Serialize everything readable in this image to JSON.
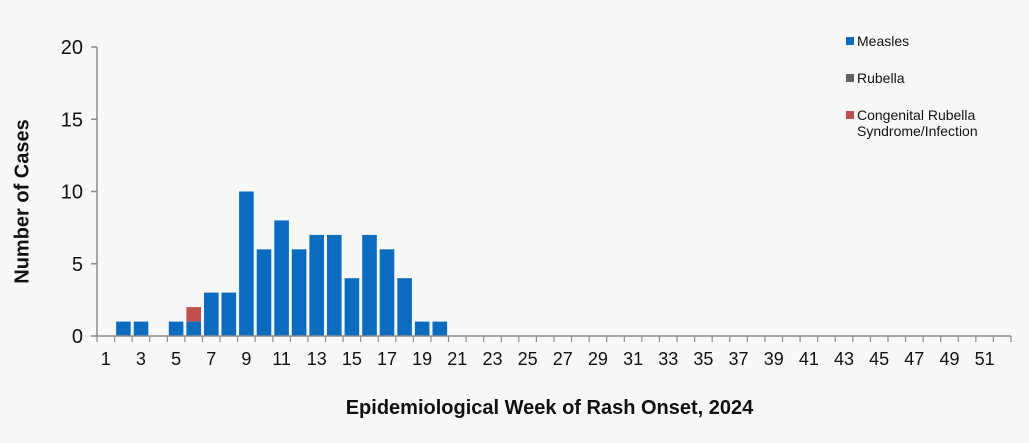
{
  "chart_data": {
    "type": "bar",
    "stacked": true,
    "title": "",
    "xlabel": "Epidemiological Week of Rash Onset, 2024",
    "ylabel": "Number of Cases",
    "ylim": [
      0,
      20
    ],
    "yticks": [
      0,
      5,
      10,
      15,
      20
    ],
    "xtick_labels": [
      1,
      3,
      5,
      7,
      9,
      11,
      13,
      15,
      17,
      19,
      21,
      23,
      25,
      27,
      29,
      31,
      33,
      35,
      37,
      39,
      41,
      43,
      45,
      47,
      49,
      51
    ],
    "grid": false,
    "legend_position": "top-right",
    "categories": [
      1,
      2,
      3,
      4,
      5,
      6,
      7,
      8,
      9,
      10,
      11,
      12,
      13,
      14,
      15,
      16,
      17,
      18,
      19,
      20,
      21,
      22,
      23,
      24,
      25,
      26,
      27,
      28,
      29,
      30,
      31,
      32,
      33,
      34,
      35,
      36,
      37,
      38,
      39,
      40,
      41,
      42,
      43,
      44,
      45,
      46,
      47,
      48,
      49,
      50,
      51,
      52
    ],
    "series": [
      {
        "name": "Measles",
        "color": "#0a6bbf",
        "values": [
          0,
          1,
          1,
          0,
          1,
          1,
          3,
          3,
          10,
          6,
          8,
          6,
          7,
          7,
          4,
          7,
          6,
          4,
          1,
          1,
          0,
          0,
          0,
          0,
          0,
          0,
          0,
          0,
          0,
          0,
          0,
          0,
          0,
          0,
          0,
          0,
          0,
          0,
          0,
          0,
          0,
          0,
          0,
          0,
          0,
          0,
          0,
          0,
          0,
          0,
          0,
          0
        ]
      },
      {
        "name": "Rubella",
        "color": "#636363",
        "values": [
          0,
          0,
          0,
          0,
          0,
          0,
          0,
          0,
          0,
          0,
          0,
          0,
          0,
          0,
          0,
          0,
          0,
          0,
          0,
          0,
          0,
          0,
          0,
          0,
          0,
          0,
          0,
          0,
          0,
          0,
          0,
          0,
          0,
          0,
          0,
          0,
          0,
          0,
          0,
          0,
          0,
          0,
          0,
          0,
          0,
          0,
          0,
          0,
          0,
          0,
          0,
          0
        ]
      },
      {
        "name": "Congenital Rubella Syndrome/Infection",
        "color": "#c0504d",
        "values": [
          0,
          0,
          0,
          0,
          0,
          1,
          0,
          0,
          0,
          0,
          0,
          0,
          0,
          0,
          0,
          0,
          0,
          0,
          0,
          0,
          0,
          0,
          0,
          0,
          0,
          0,
          0,
          0,
          0,
          0,
          0,
          0,
          0,
          0,
          0,
          0,
          0,
          0,
          0,
          0,
          0,
          0,
          0,
          0,
          0,
          0,
          0,
          0,
          0,
          0,
          0,
          0
        ]
      }
    ]
  },
  "legend": {
    "items": [
      {
        "label": "Measles",
        "color": "#0a6bbf"
      },
      {
        "label": "Rubella",
        "color": "#636363"
      },
      {
        "label": "Congenital Rubella Syndrome/Infection",
        "color": "#c0504d"
      }
    ]
  }
}
